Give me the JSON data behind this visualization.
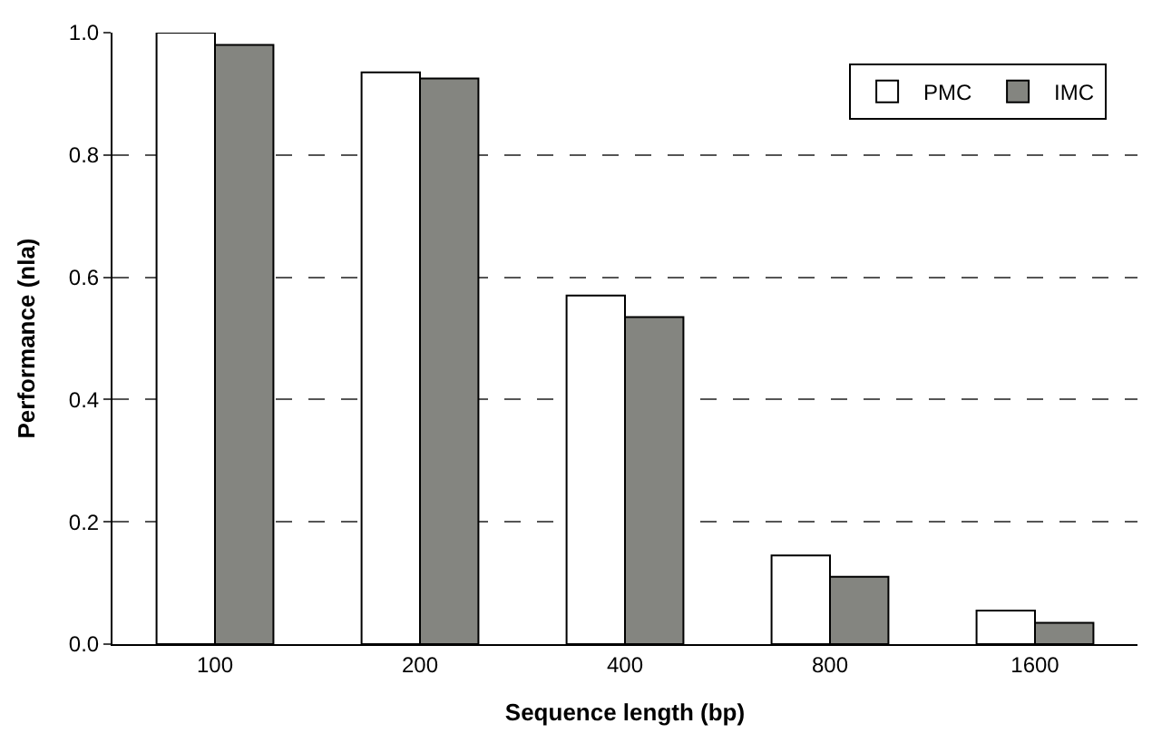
{
  "chart_data": {
    "type": "bar",
    "xlabel": "Sequence length (bp)",
    "ylabel": "Performance (nla)",
    "categories": [
      "100",
      "200",
      "400",
      "800",
      "1600"
    ],
    "series": [
      {
        "name": "PMC",
        "color": "#ffffff",
        "values": [
          1.0,
          0.935,
          0.57,
          0.145,
          0.055
        ]
      },
      {
        "name": "IMC",
        "color": "#848580",
        "values": [
          0.98,
          0.925,
          0.535,
          0.11,
          0.035
        ]
      }
    ],
    "ylim": [
      0,
      1.0
    ],
    "yticks": [
      {
        "value": 0,
        "label": "0.0"
      },
      {
        "value": 0.2,
        "label": "0.2"
      },
      {
        "value": 0.4,
        "label": "0.4"
      },
      {
        "value": 0.6,
        "label": "0.6"
      },
      {
        "value": 0.8,
        "label": "0.8"
      },
      {
        "value": 1.0,
        "label": "1.0"
      }
    ],
    "grid": "y",
    "legend": "top right"
  }
}
